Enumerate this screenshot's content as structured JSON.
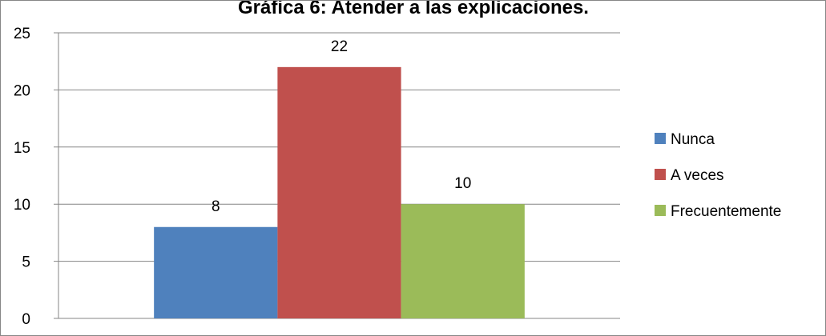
{
  "chart_data": {
    "type": "bar",
    "title": "Gráfica 6: Atender a las explicaciones.",
    "xlabel": "",
    "ylabel": "",
    "ylim": [
      0,
      25
    ],
    "yticks": [
      0,
      5,
      10,
      15,
      20,
      25
    ],
    "grid": true,
    "legend_position": "right",
    "series": [
      {
        "name": "Nunca",
        "values": [
          8
        ],
        "color": "#4F81BD"
      },
      {
        "name": "A veces",
        "values": [
          22
        ],
        "color": "#C0504D"
      },
      {
        "name": "Frecuentemente",
        "values": [
          10
        ],
        "color": "#9BBB59"
      }
    ]
  }
}
